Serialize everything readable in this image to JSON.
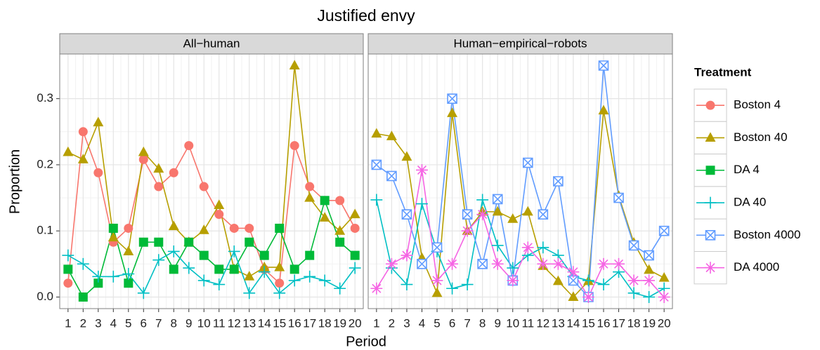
{
  "title": "Justified envy",
  "x_label": "Period",
  "y_label": "Proportion",
  "legend_title": "Treatment",
  "chart_data": [
    {
      "type": "line",
      "title": "All−human",
      "x": [
        1,
        2,
        3,
        4,
        5,
        6,
        7,
        8,
        9,
        10,
        11,
        12,
        13,
        14,
        15,
        16,
        17,
        18,
        19,
        20
      ],
      "xlim": [
        0.45,
        20.55
      ],
      "xticks": [
        1,
        2,
        3,
        4,
        5,
        6,
        7,
        8,
        9,
        10,
        11,
        12,
        13,
        14,
        15,
        16,
        17,
        18,
        19,
        20
      ],
      "ylim": [
        -0.0175,
        0.3675
      ],
      "yticks": [
        {
          "value": 0,
          "label": "0.0"
        },
        0.1,
        0.2,
        0.3
      ],
      "grid": true,
      "series": [
        {
          "name": "Boston 4",
          "color": "#F8766D",
          "marker": "circle",
          "values": [
            0.021,
            0.25,
            0.188,
            0.083,
            0.104,
            0.208,
            0.167,
            0.188,
            0.229,
            0.167,
            0.125,
            0.104,
            0.104,
            0.042,
            0.021,
            0.229,
            0.167,
            0.146,
            0.146,
            0.104
          ]
        },
        {
          "name": "Boston 40",
          "color": "#B79F00",
          "marker": "triangle",
          "values": [
            0.219,
            0.208,
            0.264,
            0.09,
            0.069,
            0.219,
            0.194,
            0.107,
            0.083,
            0.101,
            0.139,
            0.042,
            0.031,
            0.045,
            0.045,
            0.35,
            0.15,
            0.12,
            0.1,
            0.125
          ]
        },
        {
          "name": "DA 4",
          "color": "#00BA38",
          "marker": "square",
          "values": [
            0.042,
            0,
            0.021,
            0.104,
            0.021,
            0.083,
            0.083,
            0.042,
            0.083,
            0.063,
            0.042,
            0.042,
            0.083,
            0.063,
            0.104,
            0.042,
            0.063,
            0.146,
            0.083,
            0.063
          ]
        },
        {
          "name": "DA 40",
          "color": "#00BFC4",
          "marker": "plus",
          "values": [
            0.063,
            0.05,
            0.031,
            0.031,
            0.035,
            0.006,
            0.056,
            0.069,
            0.044,
            0.025,
            0.019,
            0.069,
            0.006,
            0.038,
            0.006,
            0.025,
            0.031,
            0.025,
            0.013,
            0.044
          ]
        }
      ]
    },
    {
      "type": "line",
      "title": "Human−empirical−robots",
      "x": [
        1,
        2,
        3,
        4,
        5,
        6,
        7,
        8,
        9,
        10,
        11,
        12,
        13,
        14,
        15,
        16,
        17,
        18,
        19,
        20
      ],
      "xlim": [
        0.45,
        20.55
      ],
      "xticks": [
        1,
        2,
        3,
        4,
        5,
        6,
        7,
        8,
        9,
        10,
        11,
        12,
        13,
        14,
        15,
        16,
        17,
        18,
        19,
        20
      ],
      "ylim": [
        -0.0175,
        0.3675
      ],
      "grid": true,
      "series": [
        {
          "name": "Boston 40",
          "color": "#B79F00",
          "marker": "triangle",
          "values": [
            0.247,
            0.243,
            0.212,
            0.059,
            0.006,
            0.278,
            0.1,
            0.129,
            0.129,
            0.118,
            0.129,
            0.047,
            0.024,
            0,
            0.024,
            0.282,
            0.153,
            0.082,
            0.041,
            0.029
          ]
        },
        {
          "name": "DA 40",
          "color": "#00BFC4",
          "marker": "plus",
          "values": [
            0.147,
            0.044,
            0.019,
            0.141,
            0.069,
            0.013,
            0.019,
            0.147,
            0.078,
            0.044,
            0.063,
            0.075,
            0.063,
            0.031,
            0.025,
            0.019,
            0.038,
            0.006,
            0,
            0.013
          ]
        },
        {
          "name": "Boston 4000",
          "color": "#619CFF",
          "marker": "square-x",
          "values": [
            0.2,
            0.183,
            0.125,
            0.05,
            0.075,
            0.3,
            0.125,
            0.05,
            0.148,
            0.025,
            0.203,
            0.125,
            0.175,
            0.025,
            0,
            0.35,
            0.15,
            0.078,
            0.063,
            0.1
          ]
        },
        {
          "name": "DA 4000",
          "color": "#F564E3",
          "marker": "asterisk",
          "values": [
            0.013,
            0.05,
            0.063,
            0.192,
            0.025,
            0.05,
            0.1,
            0.125,
            0.05,
            0.025,
            0.075,
            0.05,
            0.05,
            0.038,
            0,
            0.05,
            0.05,
            0.025,
            0.025,
            0
          ]
        }
      ]
    }
  ]
}
